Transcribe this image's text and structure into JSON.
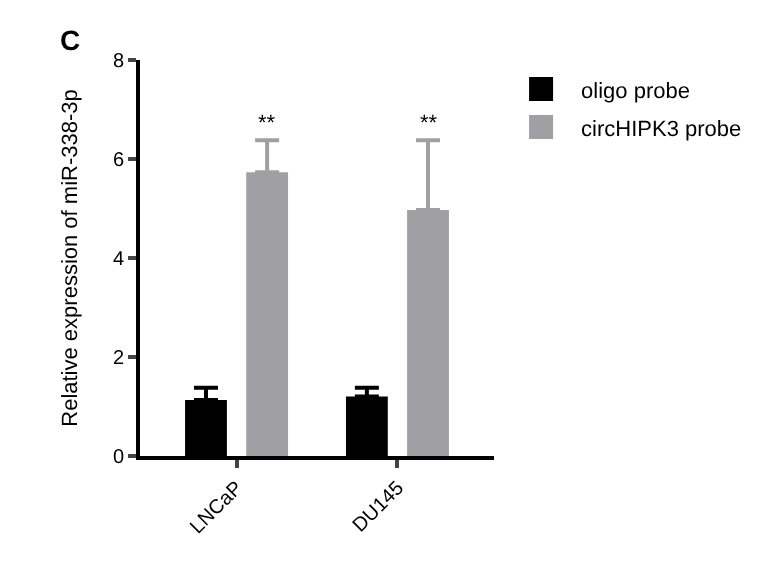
{
  "chart_data": {
    "type": "bar",
    "ylabel": "Relative expression of miR-338-3p",
    "categories": [
      "LNCaP",
      "DU145"
    ],
    "series": [
      {
        "name": "oligo probe",
        "color": "#000000",
        "values": [
          1.13,
          1.2
        ],
        "errors": [
          [
            1.13,
            1.38
          ],
          [
            1.2,
            1.38
          ]
        ]
      },
      {
        "name": "circHIPK3 probe",
        "color": "#a0a0a4",
        "values": [
          5.73,
          4.97
        ],
        "errors": [
          [
            5.73,
            6.38
          ],
          [
            4.97,
            6.38
          ]
        ]
      }
    ],
    "ylim": [
      0,
      8
    ],
    "yticks": [
      0,
      2,
      4,
      6,
      8
    ],
    "legend": "top right",
    "annotations": [
      "C",
      "**",
      "**"
    ]
  }
}
